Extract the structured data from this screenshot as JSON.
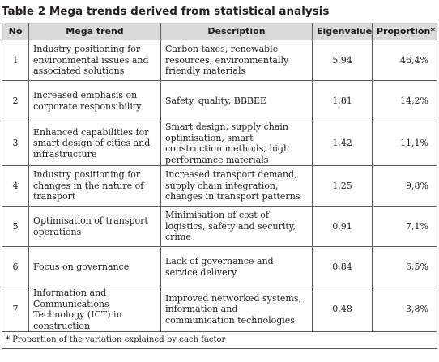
{
  "caption": {
    "label": "Table 2",
    "title": "Mega trends derived from statistical analysis"
  },
  "table": {
    "headers": {
      "no": "No",
      "trend": "Mega trend",
      "description": "Description",
      "eigenvalue": "Eigenvalue",
      "proportion": "Proportion*"
    },
    "rows": [
      {
        "no": "1",
        "trend": "Industry positioning for environmental issues and associated solutions",
        "description": "Carbon taxes, renewable resources, environmentally friendly materials",
        "eigenvalue": "5,94",
        "proportion": "46,4%"
      },
      {
        "no": "2",
        "trend": "Increased emphasis on corporate responsibility",
        "description": "Safety, quality, BBBEE",
        "eigenvalue": "1,81",
        "proportion": "14,2%"
      },
      {
        "no": "3",
        "trend": "Enhanced capabilities for smart design of cities and infrastructure",
        "description": "Smart design, supply chain optimisation, smart construction methods, high performance materials",
        "eigenvalue": "1,42",
        "proportion": "11,1%"
      },
      {
        "no": "4",
        "trend": "Industry positioning for changes in the nature of transport",
        "description": "Increased transport demand, supply chain integration, changes in transport patterns",
        "eigenvalue": "1,25",
        "proportion": "9,8%"
      },
      {
        "no": "5",
        "trend": "Optimisation of transport operations",
        "description": "Minimisation of cost of logistics, safety and security, crime",
        "eigenvalue": "0,91",
        "proportion": "7,1%"
      },
      {
        "no": "6",
        "trend": "Focus on governance",
        "description": "Lack of governance and service delivery",
        "eigenvalue": "0,84",
        "proportion": "6,5%"
      },
      {
        "no": "7",
        "trend": "Information and Communications Technology (ICT) in construction",
        "description": "Improved networked systems, information and communication technologies",
        "eigenvalue": "0,48",
        "proportion": "3,8%"
      }
    ],
    "footnote": "* Proportion of the variation explained by each factor"
  }
}
